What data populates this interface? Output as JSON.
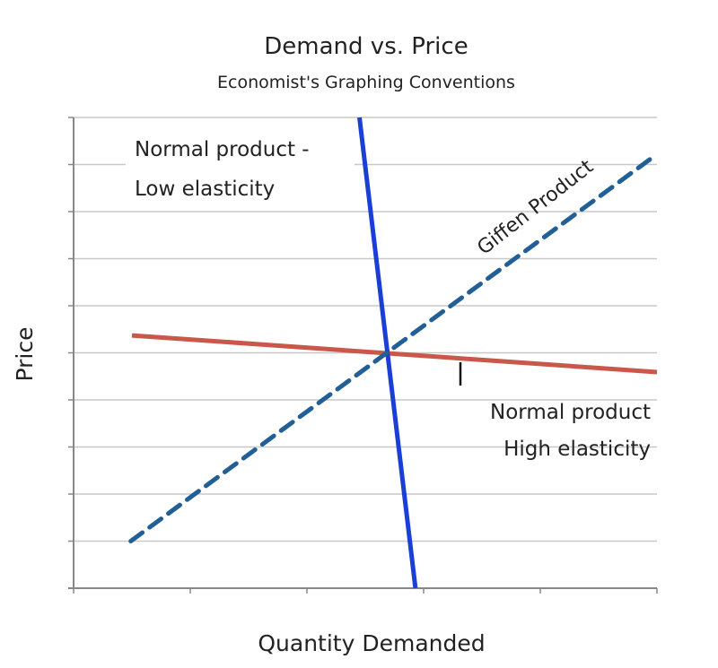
{
  "chart_data": {
    "type": "line",
    "title": "Demand vs. Price",
    "subtitle": "Economist's Graphing Conventions",
    "xlabel": "Quantity Demanded",
    "ylabel": "Price",
    "xlim": [
      0,
      5
    ],
    "ylim": [
      0,
      10
    ],
    "grid": true,
    "x_ticks": [
      0,
      1,
      2,
      3,
      4,
      5
    ],
    "y_ticks": [
      0,
      1,
      2,
      3,
      4,
      5,
      6,
      7,
      8,
      9,
      10
    ],
    "series": [
      {
        "key": "high",
        "color": "#c9574a",
        "style": "solid",
        "points": [
          [
            0.5,
            5.37
          ],
          [
            5.0,
            4.59
          ]
        ]
      },
      {
        "key": "low",
        "color": "#1a3fd6",
        "style": "solid",
        "points": [
          [
            2.45,
            10.0
          ],
          [
            2.93,
            0.0
          ]
        ]
      },
      {
        "key": "giffen",
        "color": "#215f96",
        "style": "dashed",
        "points": [
          [
            0.49,
            1.0
          ],
          [
            5.0,
            9.22
          ]
        ]
      }
    ],
    "annotations": {
      "low_line1": "Normal product -",
      "low_line2": "Low elasticity",
      "giffen": "Giffen  Product",
      "high_line1": "Normal product",
      "high_line2": "High elasticity"
    }
  }
}
